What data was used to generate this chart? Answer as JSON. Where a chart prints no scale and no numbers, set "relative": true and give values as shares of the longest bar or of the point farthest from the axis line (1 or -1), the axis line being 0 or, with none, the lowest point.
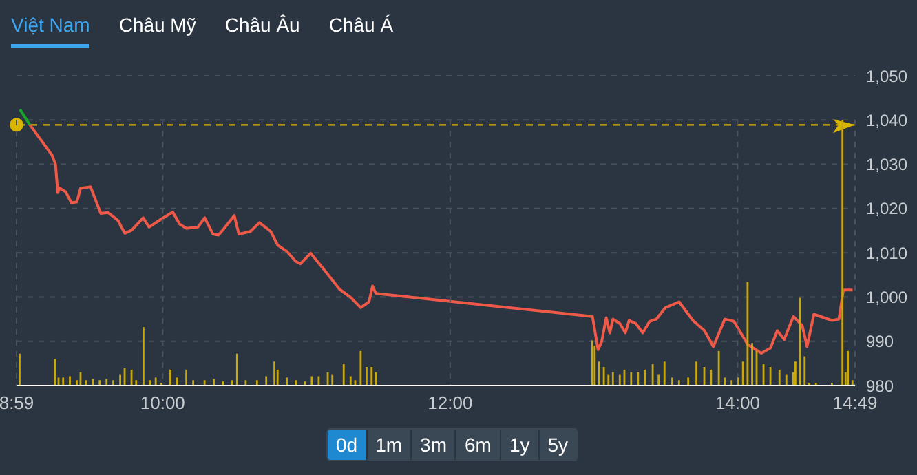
{
  "chart_data": [
    {
      "type": "line",
      "annotations": [
        "Việt Nam",
        "Châu Mỹ",
        "Châu Âu",
        "Châu Á",
        "0d",
        "1m",
        "3m",
        "6m",
        "1y",
        "5y"
      ],
      "xlim": [
        8.983,
        14.817
      ],
      "tick_labels": "y",
      "ylim": [
        980,
        1050
      ],
      "yticks": [
        980,
        990,
        {
          "value": 1000,
          "label": "1,000"
        },
        {
          "value": 1010,
          "label": "1,010"
        },
        {
          "value": 1020,
          "label": "1,020"
        },
        {
          "value": 1030,
          "label": "1,030"
        },
        {
          "value": 1040,
          "label": "1,040"
        },
        {
          "value": 1050,
          "label": "1,050"
        }
      ],
      "grid": true,
      "ref_lines": [
        {
          "axis": "y",
          "value": 1038.9,
          "color": "#d9b400",
          "line_style": "dashed"
        }
      ],
      "series": [
        {
          "color": "#1aa32a",
          "x": [
            9.007,
            9.076
          ],
          "values": [
            1042.4,
            1038.9
          ]
        },
        {
          "color": "#ef5a48",
          "x": [
            9.076,
            9.229,
            9.254,
            9.27,
            9.283,
            9.324,
            9.365,
            9.403,
            9.429,
            9.498,
            9.569,
            9.619,
            9.689,
            9.736,
            9.784,
            9.864,
            9.905,
            9.99,
            10.07,
            10.117,
            10.165,
            10.245,
            10.292,
            10.35,
            10.388,
            10.435,
            10.498,
            10.53,
            10.61,
            10.673,
            10.752,
            10.8,
            10.864,
            10.927,
            10.959,
            11.029,
            11.117,
            11.229,
            11.308,
            11.378,
            11.435,
            11.46,
            11.483,
            12.99,
            13.029,
            13.054,
            13.086,
            13.111,
            13.133,
            13.181,
            13.219,
            13.245,
            13.292,
            13.34,
            13.388,
            13.435,
            13.498,
            13.593,
            13.689,
            13.769,
            13.831,
            13.911,
            13.974,
            14.07,
            14.165,
            14.229,
            14.276,
            14.324,
            14.388,
            14.45,
            14.483,
            14.531,
            14.657,
            14.705,
            14.736,
            14.8
          ],
          "values": [
            1038.9,
            1032.1,
            1030,
            1023.6,
            1024.6,
            1023.8,
            1021.3,
            1021.5,
            1024.6,
            1024.9,
            1018.9,
            1019.1,
            1017.3,
            1014.4,
            1015.1,
            1017.9,
            1015.8,
            1017.6,
            1019.2,
            1016.5,
            1015.5,
            1015.8,
            1017.9,
            1014.2,
            1014,
            1015.8,
            1018.4,
            1014.2,
            1014.8,
            1016.8,
            1014.8,
            1011.7,
            1010.3,
            1008,
            1007.5,
            1009.9,
            1006.4,
            1001.8,
            999.9,
            997.6,
            998.9,
            1002.5,
            1000.8,
            995.6,
            988.1,
            989.9,
            995.3,
            991.9,
            995,
            994,
            991.9,
            994.7,
            994,
            991.9,
            994.5,
            995,
            997.6,
            998.9,
            994.7,
            992.4,
            988.8,
            995,
            994.5,
            989.3,
            987.3,
            988.5,
            992.4,
            990.4,
            995.6,
            993.5,
            988.8,
            996.1,
            994.7,
            995,
            1001.6,
            1001.6
          ]
        }
      ]
    },
    {
      "type": "bar",
      "relative": true,
      "grid": "x",
      "tick_labels": "x",
      "xlim": [
        8.983,
        14.817
      ],
      "xticks": [
        {
          "value": 8.983,
          "label": "8:59"
        },
        {
          "value": 10,
          "label": "10:00"
        },
        {
          "value": 12,
          "label": "12:00"
        },
        {
          "value": 14,
          "label": "14:00"
        },
        {
          "value": 14.817,
          "label": "14:49"
        }
      ],
      "color": "#c9a80a",
      "x": [
        9.005,
        9.251,
        9.276,
        9.308,
        9.355,
        9.403,
        9.429,
        9.467,
        9.514,
        9.562,
        9.61,
        9.657,
        9.705,
        9.736,
        9.784,
        9.816,
        9.867,
        9.911,
        9.952,
        9.99,
        10.054,
        10.102,
        10.165,
        10.213,
        10.292,
        10.356,
        10.419,
        10.483,
        10.518,
        10.578,
        10.657,
        10.721,
        10.778,
        10.8,
        10.864,
        10.927,
        10.99,
        11.038,
        11.086,
        11.149,
        11.181,
        11.26,
        11.308,
        11.34,
        11.378,
        11.419,
        11.454,
        11.483,
        12.99,
        13.006,
        13.038,
        13.07,
        13.102,
        13.133,
        13.181,
        13.213,
        13.26,
        13.308,
        13.356,
        13.41,
        13.451,
        13.492,
        13.546,
        13.593,
        13.657,
        13.714,
        13.769,
        13.816,
        13.87,
        13.911,
        13.959,
        14.006,
        14.038,
        14.07,
        14.102,
        14.133,
        14.181,
        14.229,
        14.292,
        14.34,
        14.388,
        14.403,
        14.435,
        14.467,
        14.498,
        14.546,
        14.657,
        14.73,
        14.752,
        14.768,
        14.8
      ],
      "values": [
        0.12,
        0.1,
        0.03,
        0.03,
        0.035,
        0.02,
        0.05,
        0.02,
        0.025,
        0.02,
        0.025,
        0.02,
        0.04,
        0.065,
        0.06,
        0.02,
        0.22,
        0.02,
        0.03,
        0.01,
        0.06,
        0.03,
        0.06,
        0.02,
        0.02,
        0.025,
        0.015,
        0.02,
        0.12,
        0.02,
        0.02,
        0.035,
        0.09,
        0.06,
        0.03,
        0.02,
        0.015,
        0.035,
        0.035,
        0.05,
        0.04,
        0.08,
        0.035,
        0.02,
        0.13,
        0.07,
        0.07,
        0.05,
        0.17,
        0.15,
        0.09,
        0.07,
        0.04,
        0.05,
        0.04,
        0.06,
        0.05,
        0.05,
        0.06,
        0.08,
        0.04,
        0.09,
        0.03,
        0.02,
        0.03,
        0.09,
        0.07,
        0.06,
        0.13,
        0.03,
        0.02,
        0.03,
        0.09,
        0.39,
        0.16,
        0.13,
        0.08,
        0.07,
        0.06,
        0.04,
        0.05,
        0.09,
        0.33,
        0.11,
        0.01,
        0.01,
        0.01,
        1,
        0.05,
        0.13,
        0.02
      ]
    }
  ]
}
